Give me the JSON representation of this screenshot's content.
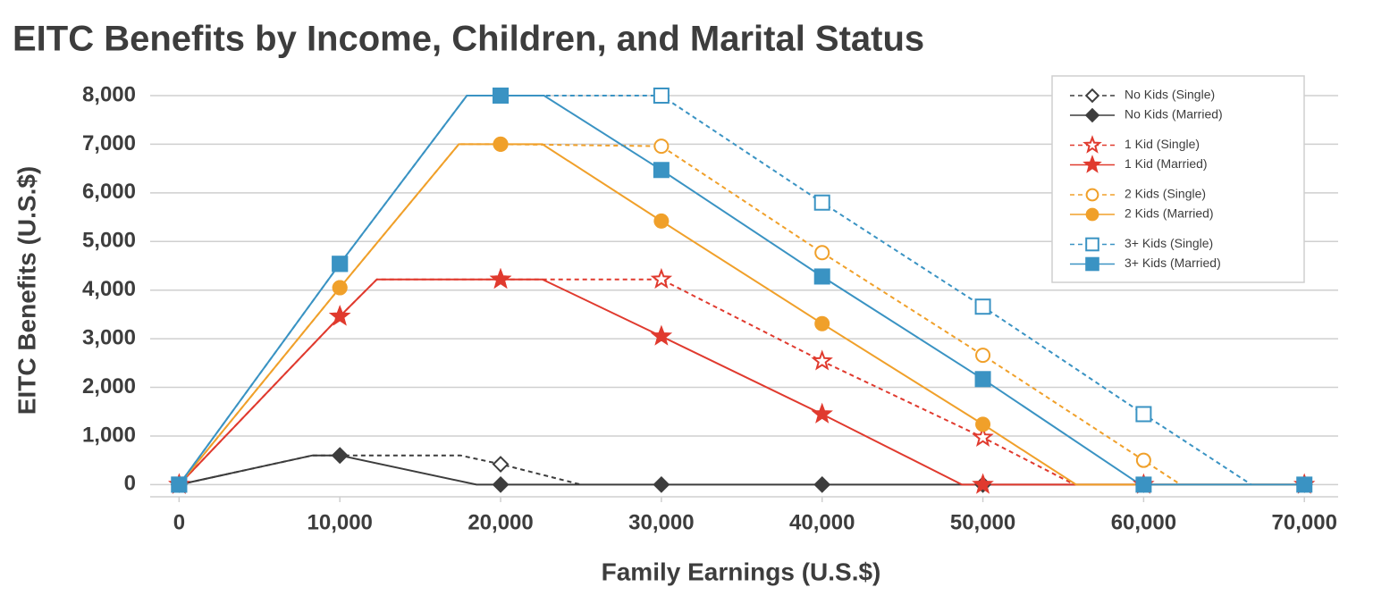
{
  "chart_data": {
    "type": "line",
    "title": "EITC Benefits by Income, Children, and Marital Status",
    "x_label": "Family Earnings (U.S.$)",
    "y_label": "EITC Benefits (U.S.$)",
    "xlim": [
      -1800,
      72100
    ],
    "ylim": [
      -250,
      8000
    ],
    "xticks": [
      0,
      {
        "value": 10000,
        "label": "10,000"
      },
      {
        "value": 20000,
        "label": "20,000"
      },
      {
        "value": 30000,
        "label": "30,000"
      },
      {
        "value": 40000,
        "label": "40,000"
      },
      {
        "value": 50000,
        "label": "50,000"
      },
      {
        "value": 60000,
        "label": "60,000"
      },
      {
        "value": 70000,
        "label": "70,000"
      }
    ],
    "yticks": [
      0,
      {
        "value": 1000,
        "label": "1,000"
      },
      {
        "value": 2000,
        "label": "2,000"
      },
      {
        "value": 3000,
        "label": "3,000"
      },
      {
        "value": 4000,
        "label": "4,000"
      },
      {
        "value": 5000,
        "label": "5,000"
      },
      {
        "value": 6000,
        "label": "6,000"
      },
      {
        "value": 7000,
        "label": "7,000"
      },
      {
        "value": 8000,
        "label": "8,000"
      }
    ],
    "grid": true,
    "legend": "upper right",
    "series": [
      {
        "name": "No Kids (Single)",
        "color": "#3d3d3d",
        "dashed": true,
        "marker": "diamond",
        "filled": false,
        "x": [
          0,
          8300,
          10000,
          17500,
          20000,
          25000
        ],
        "values": [
          0,
          600,
          600,
          600,
          420,
          0
        ]
      },
      {
        "name": "No Kids (Married)",
        "color": "#3d3d3d",
        "dashed": false,
        "marker": "diamond",
        "filled": true,
        "x": [
          0,
          8300,
          10000,
          18500,
          20000,
          30000,
          40000,
          50000,
          60000,
          70000
        ],
        "values": [
          0,
          600,
          600,
          0,
          0,
          0,
          0,
          0,
          0,
          0
        ]
      },
      {
        "name": "1 Kid (Single)",
        "color": "#e03a2e",
        "dashed": true,
        "marker": "star",
        "filled": false,
        "x": [
          0,
          10000,
          12300,
          20000,
          30000,
          40000,
          50000,
          55700
        ],
        "values": [
          0,
          3460,
          4220,
          4220,
          4220,
          2540,
          970,
          0
        ]
      },
      {
        "name": "1 Kid (Married)",
        "color": "#e03a2e",
        "dashed": false,
        "marker": "star",
        "filled": true,
        "x": [
          0,
          10000,
          12300,
          20000,
          22600,
          30000,
          40000,
          48700,
          50000,
          60000,
          70000
        ],
        "values": [
          0,
          3460,
          4220,
          4220,
          4220,
          3050,
          1450,
          0,
          0,
          0,
          0
        ]
      },
      {
        "name": "2 Kids (Single)",
        "color": "#f0a02a",
        "dashed": true,
        "marker": "circle",
        "filled": false,
        "x": [
          0,
          10000,
          17400,
          20000,
          30000,
          40000,
          50000,
          60000,
          62300
        ],
        "values": [
          0,
          4050,
          7000,
          7000,
          6960,
          4770,
          2660,
          500,
          0
        ]
      },
      {
        "name": "2 Kids (Married)",
        "color": "#f0a02a",
        "dashed": false,
        "marker": "circle",
        "filled": true,
        "x": [
          0,
          10000,
          17400,
          20000,
          22600,
          30000,
          40000,
          50000,
          55800,
          60000,
          70000
        ],
        "values": [
          0,
          4050,
          7000,
          7000,
          7000,
          5420,
          3310,
          1240,
          0,
          0,
          0
        ]
      },
      {
        "name": "3+ Kids (Single)",
        "color": "#3a93c3",
        "dashed": true,
        "marker": "square",
        "filled": false,
        "x": [
          0,
          10000,
          17900,
          20000,
          30000,
          40000,
          50000,
          60000,
          66700
        ],
        "values": [
          0,
          4540,
          8000,
          8000,
          8000,
          5800,
          3660,
          1450,
          0
        ]
      },
      {
        "name": "3+ Kids (Married)",
        "color": "#3a93c3",
        "dashed": false,
        "marker": "square",
        "filled": true,
        "x": [
          0,
          10000,
          17900,
          20000,
          22700,
          30000,
          40000,
          50000,
          59800,
          60000,
          70000
        ],
        "values": [
          0,
          4540,
          8000,
          8000,
          8000,
          6470,
          4280,
          2170,
          0,
          0,
          0
        ]
      }
    ]
  }
}
